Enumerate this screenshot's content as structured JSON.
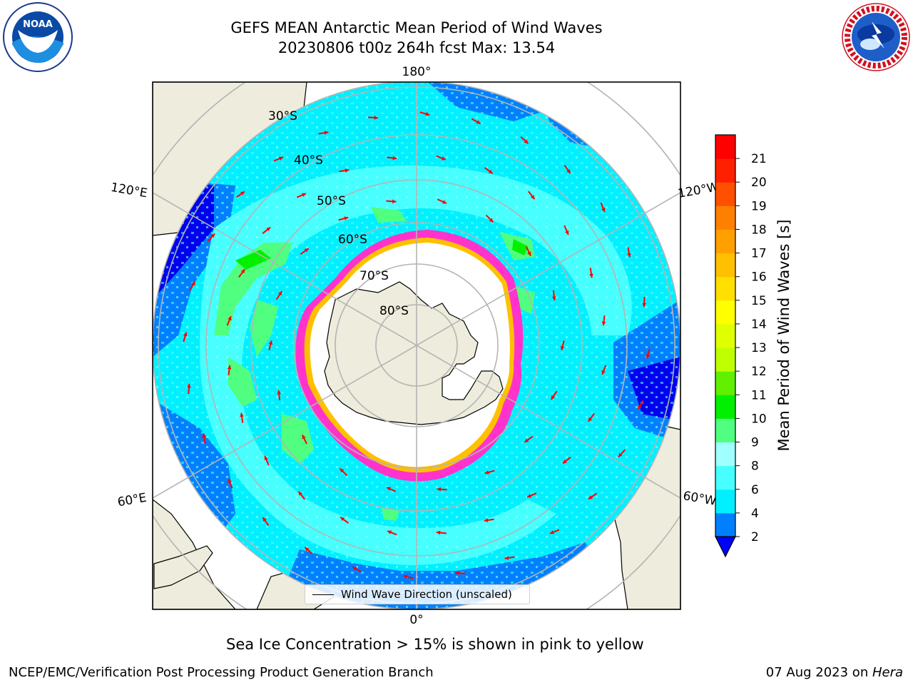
{
  "title_line1": "GEFS MEAN Antarctic Mean Period of Wind Waves",
  "title_line2": "20230806 t00z 264h fcst   Max: 13.54",
  "map": {
    "longitude_labels": {
      "top": "180°",
      "bottom": "0°",
      "upper_left": "120°E",
      "upper_right": "120°W",
      "lower_left": "60°E",
      "lower_right": "60°W"
    },
    "latitude_labels": [
      "30°S",
      "40°S",
      "50°S",
      "60°S",
      "70°S",
      "80°S"
    ],
    "projection": "south polar stereographic",
    "colors": {
      "land": "#eeecdc",
      "ocean_4_6": "#00f0ff",
      "ocean_6_8": "#48ffff",
      "ocean_2_4": "#0080ff",
      "ocean_below_2": "#0000f0",
      "ice_edge": "#ff33cc",
      "arrows": "#ff0000"
    }
  },
  "legend": {
    "label": "Wind Wave Direction (unscaled)"
  },
  "colorbar": {
    "label": "Mean Period of Wind Waves [s]",
    "ticks": [
      "2",
      "4",
      "6",
      "8",
      "9",
      "10",
      "11",
      "12",
      "13",
      "14",
      "15",
      "16",
      "17",
      "18",
      "19",
      "20",
      "21"
    ],
    "colors": [
      "#0080ff",
      "#00f0ff",
      "#48ffff",
      "#a0ffff",
      "#50ff80",
      "#00f000",
      "#60f000",
      "#c0ff00",
      "#e0ff00",
      "#ffff00",
      "#ffe000",
      "#ffc000",
      "#ffa000",
      "#ff8000",
      "#ff5000",
      "#ff2000",
      "#ff0000"
    ],
    "extend_color": "#0000ff"
  },
  "sea_ice_note": "Sea Ice Concentration > 15% is shown in pink to yellow",
  "footer_left": "NCEP/EMC/Verification Post Processing Product Generation Branch",
  "footer_right_date": "07 Aug 2023 on ",
  "footer_right_machine": "Hera",
  "logos": {
    "left": "NOAA",
    "right": "NATIONAL WEATHER SERVICE"
  }
}
